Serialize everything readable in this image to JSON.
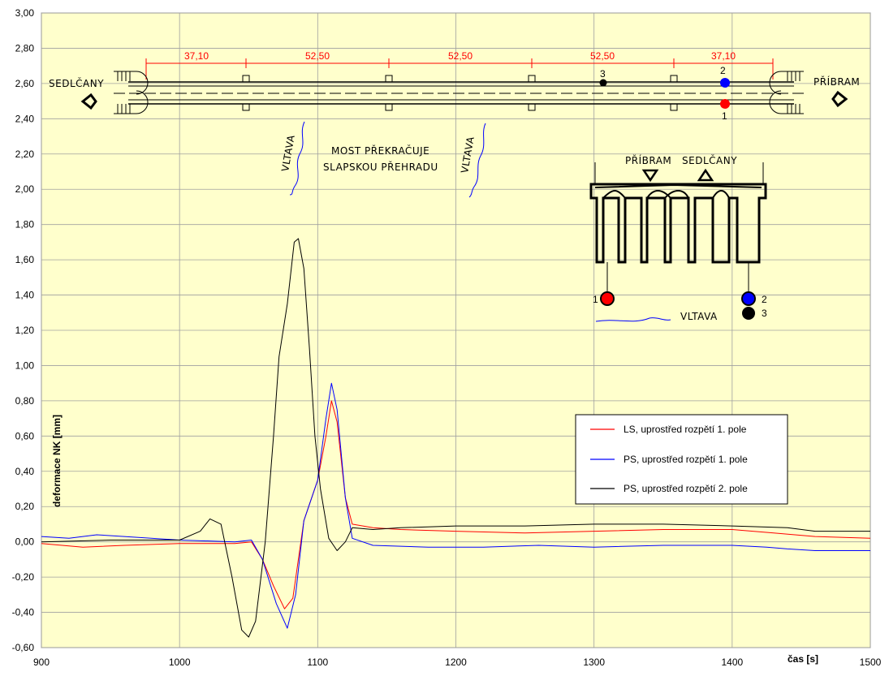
{
  "chart_data": {
    "type": "line",
    "xlabel": "čas [s]",
    "ylabel": "deformace NK [mm]",
    "xlim": [
      900,
      1500
    ],
    "ylim": [
      -0.6,
      3.0
    ],
    "x_ticks": [
      "900",
      "1000",
      "1100",
      "1200",
      "1300",
      "1400",
      "1500"
    ],
    "y_ticks": [
      "-0,60",
      "-0,40",
      "-0,20",
      "0,00",
      "0,20",
      "0,40",
      "0,60",
      "0,80",
      "1,00",
      "1,20",
      "1,40",
      "1,60",
      "1,80",
      "2,00",
      "2,20",
      "2,40",
      "2,60",
      "2,80",
      "3,00"
    ],
    "grid": true,
    "background": "#ffffcc",
    "legend_position": "right",
    "series": [
      {
        "name": "LS, uprostřed rozpětí 1. pole",
        "color": "#ff0000",
        "points": [
          [
            900,
            -0.01
          ],
          [
            930,
            -0.03
          ],
          [
            960,
            -0.02
          ],
          [
            1000,
            -0.01
          ],
          [
            1040,
            -0.01
          ],
          [
            1052,
            0.0
          ],
          [
            1060,
            -0.1
          ],
          [
            1068,
            -0.25
          ],
          [
            1076,
            -0.38
          ],
          [
            1082,
            -0.32
          ],
          [
            1090,
            0.12
          ],
          [
            1100,
            0.35
          ],
          [
            1106,
            0.6
          ],
          [
            1110,
            0.8
          ],
          [
            1114,
            0.68
          ],
          [
            1120,
            0.25
          ],
          [
            1125,
            0.1
          ],
          [
            1140,
            0.08
          ],
          [
            1160,
            0.07
          ],
          [
            1200,
            0.06
          ],
          [
            1250,
            0.05
          ],
          [
            1300,
            0.06
          ],
          [
            1350,
            0.07
          ],
          [
            1400,
            0.07
          ],
          [
            1430,
            0.05
          ],
          [
            1460,
            0.03
          ],
          [
            1500,
            0.02
          ]
        ]
      },
      {
        "name": "PS, uprostřed rozpětí 1. pole",
        "color": "#0000ff",
        "points": [
          [
            900,
            0.03
          ],
          [
            920,
            0.02
          ],
          [
            940,
            0.04
          ],
          [
            960,
            0.03
          ],
          [
            1000,
            0.01
          ],
          [
            1040,
            0.0
          ],
          [
            1052,
            0.01
          ],
          [
            1060,
            -0.1
          ],
          [
            1070,
            -0.35
          ],
          [
            1078,
            -0.49
          ],
          [
            1084,
            -0.3
          ],
          [
            1090,
            0.12
          ],
          [
            1100,
            0.35
          ],
          [
            1106,
            0.7
          ],
          [
            1110,
            0.9
          ],
          [
            1114,
            0.75
          ],
          [
            1120,
            0.25
          ],
          [
            1125,
            0.02
          ],
          [
            1140,
            -0.02
          ],
          [
            1180,
            -0.03
          ],
          [
            1220,
            -0.03
          ],
          [
            1260,
            -0.02
          ],
          [
            1300,
            -0.03
          ],
          [
            1350,
            -0.02
          ],
          [
            1400,
            -0.02
          ],
          [
            1425,
            -0.03
          ],
          [
            1440,
            -0.04
          ],
          [
            1460,
            -0.05
          ],
          [
            1500,
            -0.05
          ]
        ]
      },
      {
        "name": "PS, uprostřed rozpětí 2. pole",
        "color": "#000000",
        "points": [
          [
            900,
            0.0
          ],
          [
            950,
            0.01
          ],
          [
            1000,
            0.01
          ],
          [
            1015,
            0.06
          ],
          [
            1022,
            0.13
          ],
          [
            1030,
            0.1
          ],
          [
            1038,
            -0.2
          ],
          [
            1045,
            -0.5
          ],
          [
            1050,
            -0.54
          ],
          [
            1055,
            -0.45
          ],
          [
            1062,
            0.0
          ],
          [
            1068,
            0.6
          ],
          [
            1072,
            1.05
          ],
          [
            1078,
            1.35
          ],
          [
            1083,
            1.7
          ],
          [
            1086,
            1.72
          ],
          [
            1090,
            1.55
          ],
          [
            1094,
            1.1
          ],
          [
            1098,
            0.6
          ],
          [
            1102,
            0.3
          ],
          [
            1108,
            0.02
          ],
          [
            1114,
            -0.05
          ],
          [
            1120,
            0.0
          ],
          [
            1125,
            0.08
          ],
          [
            1140,
            0.07
          ],
          [
            1160,
            0.08
          ],
          [
            1200,
            0.09
          ],
          [
            1250,
            0.09
          ],
          [
            1300,
            0.1
          ],
          [
            1350,
            0.1
          ],
          [
            1400,
            0.09
          ],
          [
            1440,
            0.08
          ],
          [
            1460,
            0.06
          ],
          [
            1500,
            0.06
          ]
        ]
      }
    ],
    "annotations": {
      "place_left": "SEDLČANY",
      "place_right": "PŘÍBRAM",
      "spans": [
        "37,10",
        "52,50",
        "52,50",
        "52,50",
        "37,10"
      ],
      "river": "VLTAVA",
      "note_line1": "MOST PŘEKRAČUJE",
      "note_line2": "SLAPSKOU PŘEHRADU",
      "section_left_label": "PŘÍBRAM",
      "section_right_label": "SEDLČANY",
      "point_labels": [
        "1",
        "2",
        "3"
      ]
    }
  }
}
